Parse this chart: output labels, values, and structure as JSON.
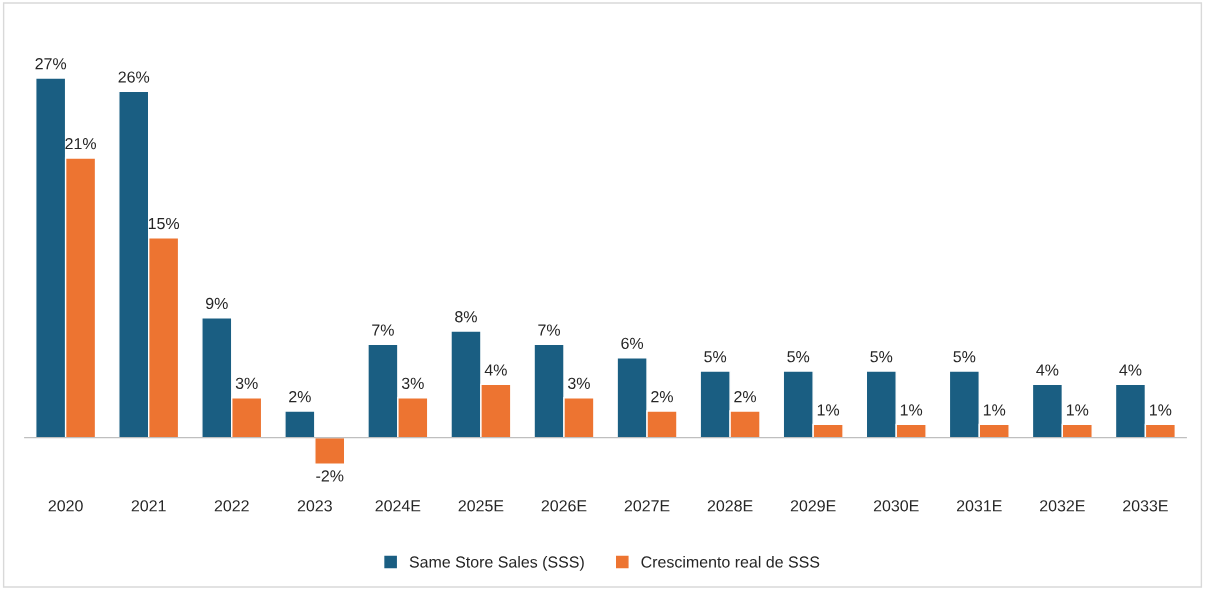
{
  "chart_data": {
    "type": "bar",
    "categories": [
      "2020",
      "2021",
      "2022",
      "2023",
      "2024E",
      "2025E",
      "2026E",
      "2027E",
      "2028E",
      "2029E",
      "2030E",
      "2031E",
      "2032E",
      "2033E"
    ],
    "series": [
      {
        "name": "Same Store Sales (SSS)",
        "color": "#1a5e82",
        "values": [
          27,
          26,
          9,
          2,
          7,
          8,
          7,
          6,
          5,
          5,
          5,
          5,
          4,
          4
        ],
        "value_labels": [
          "27%",
          "26%",
          "9%",
          "2%",
          "7%",
          "8%",
          "7%",
          "6%",
          "5%",
          "5%",
          "5%",
          "5%",
          "4%",
          "4%"
        ]
      },
      {
        "name": "Crescimento real de SSS",
        "color": "#ed7431",
        "values": [
          21,
          15,
          3,
          -2,
          3,
          4,
          3,
          2,
          2,
          1,
          1,
          1,
          1,
          1
        ],
        "value_labels": [
          "21%",
          "15%",
          "3%",
          "-2%",
          "3%",
          "4%",
          "3%",
          "2%",
          "2%",
          "1%",
          "1%",
          "1%",
          "1%",
          "1%"
        ]
      }
    ],
    "legend": "bottom",
    "grid": false
  }
}
